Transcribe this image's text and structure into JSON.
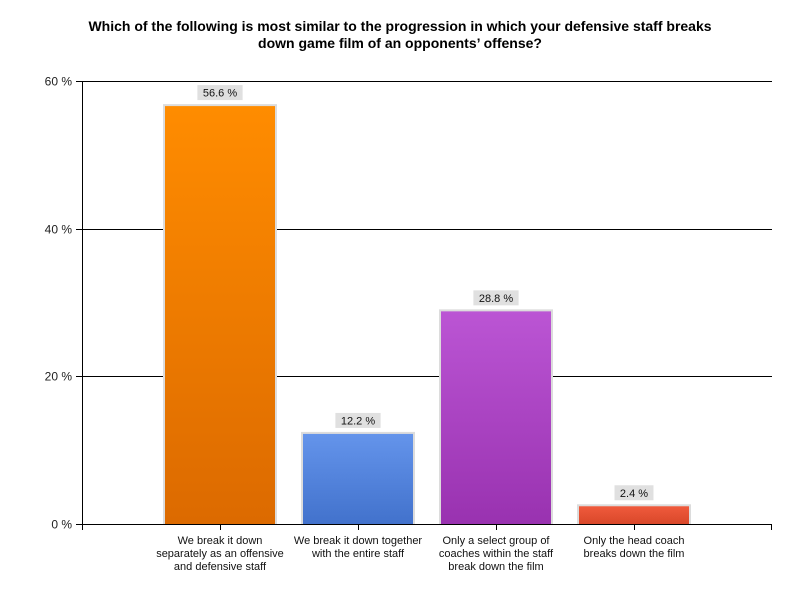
{
  "chart_data": {
    "type": "bar",
    "title": "Which of the following is most similar to the progression in which your defensive staff breaks down game film of an opponents’ offense?",
    "title_lines": [
      "Which of the following is most similar to the progression in which your defensive staff breaks",
      "down game film of an opponents’ offense?"
    ],
    "xlabel": "",
    "ylabel": "",
    "ylim": [
      0,
      60
    ],
    "y_ticks": [
      0,
      20,
      40,
      60
    ],
    "y_tick_labels": [
      "0 %",
      "20 %",
      "40 %",
      "60 %"
    ],
    "grid": true,
    "legend": "none",
    "categories": [
      [
        "We break it down",
        "separately as an offensive",
        "and defensive staff"
      ],
      [
        "We break it down together",
        "with the entire staff"
      ],
      [
        "Only a select group of",
        "coaches within the staff",
        "break down the film"
      ],
      [
        "Only the head coach",
        "breaks down the film"
      ]
    ],
    "values": [
      56.6,
      12.2,
      28.8,
      2.4
    ],
    "data_labels": [
      "56.6 %",
      "12.2 %",
      "28.8 %",
      "2.4 %"
    ],
    "colors": [
      {
        "top": "#ff8c00",
        "bottom": "#dc6a00"
      },
      {
        "top": "#6494eb",
        "bottom": "#4272cc"
      },
      {
        "top": "#bb55d4",
        "bottom": "#9932b0"
      },
      {
        "top": "#f05a3c",
        "bottom": "#d9482a"
      }
    ]
  }
}
